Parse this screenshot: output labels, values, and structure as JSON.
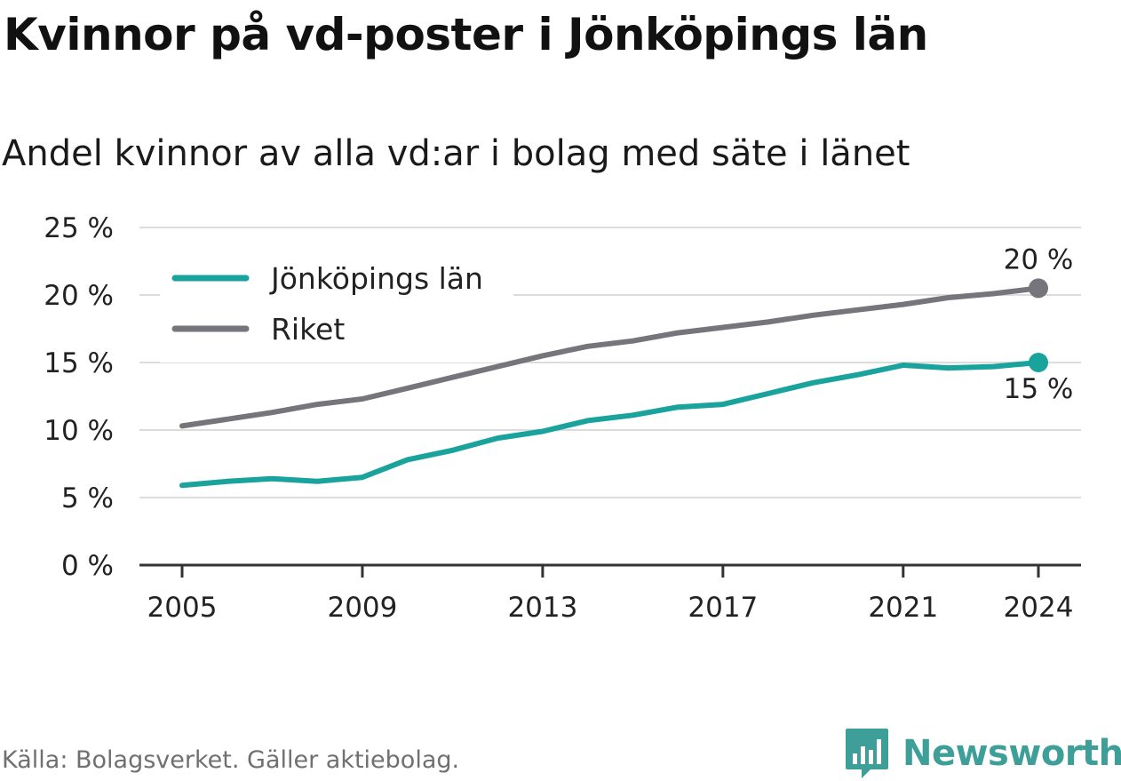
{
  "header": {
    "title": "Kvinnor på vd-poster i Jönköpings län",
    "subtitle": "Andel kvinnor av alla vd:ar i bolag med säte i länet"
  },
  "footer": {
    "source": "Källa: Bolagsverket. Gäller aktiebolag.",
    "brand": "Newsworthy",
    "brand_icon": "newsworthy-bar-chart-logo-icon"
  },
  "colors": {
    "jonkoping": "#1aa39c",
    "riket": "#76757c",
    "grid": "#dcdcdc",
    "axis": "#333333",
    "brand": "#3e9e98"
  },
  "chart_data": {
    "type": "line",
    "title": "Kvinnor på vd-poster i Jönköpings län",
    "subtitle": "Andel kvinnor av alla vd:ar i bolag med säte i länet",
    "x": [
      2005,
      2006,
      2007,
      2008,
      2009,
      2010,
      2011,
      2012,
      2013,
      2014,
      2015,
      2016,
      2017,
      2018,
      2019,
      2020,
      2021,
      2022,
      2023,
      2024
    ],
    "series": [
      {
        "name": "Jönköpings län",
        "color": "#1aa39c",
        "values": [
          5.9,
          6.2,
          6.4,
          6.2,
          6.5,
          7.8,
          8.5,
          9.4,
          9.9,
          10.7,
          11.1,
          11.7,
          11.9,
          12.7,
          13.5,
          14.1,
          14.8,
          14.6,
          14.7,
          15.0
        ],
        "end_label": "15 %"
      },
      {
        "name": "Riket",
        "color": "#76757c",
        "values": [
          10.3,
          10.8,
          11.3,
          11.9,
          12.3,
          13.1,
          13.9,
          14.7,
          15.5,
          16.2,
          16.6,
          17.2,
          17.6,
          18.0,
          18.5,
          18.9,
          19.3,
          19.8,
          20.1,
          20.5
        ],
        "end_label": "20 %"
      }
    ],
    "ylim": [
      0,
      25
    ],
    "y_ticks": [
      0,
      5,
      10,
      15,
      20,
      25
    ],
    "y_tick_labels": [
      "0 %",
      "5 %",
      "10 %",
      "15 %",
      "20 %",
      "25 %"
    ],
    "x_ticks": [
      2005,
      2009,
      2013,
      2017,
      2021,
      2024
    ],
    "x_tick_labels": [
      "2005",
      "2009",
      "2013",
      "2017",
      "2021",
      "2024"
    ],
    "xlabel": "",
    "ylabel": "",
    "grid": true,
    "legend": "top-left"
  }
}
